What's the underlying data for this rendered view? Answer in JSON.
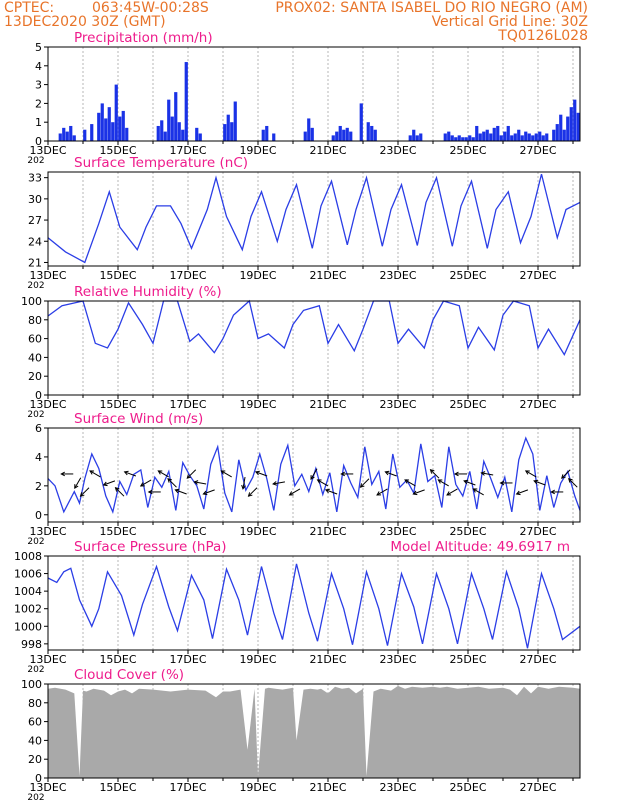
{
  "header": {
    "left_line1": "CPTEC:",
    "coords": "063:45W-00:28S",
    "station": "PROX02: SANTA ISABEL DO RIO NEGRO (AM)",
    "date": "13DEC2020 30Z (GMT)",
    "grid_line": "Vertical Grid Line: 30Z",
    "code": "TQ0126L028"
  },
  "colors": {
    "header": "#e8742a",
    "panel_title": "#ee1c8c",
    "line": "#2b3ee6",
    "bar": "#1a32e6",
    "cloud": "#a9a9a9",
    "grid": "#888888"
  },
  "x_axis": {
    "tick_labels": [
      "13DEC",
      "15DEC",
      "17DEC",
      "19DEC",
      "21DEC",
      "23DEC",
      "25DEC",
      "27DEC"
    ],
    "range_days": [
      0,
      15.2
    ],
    "year_label": "202"
  },
  "chart_data": [
    {
      "id": "precip",
      "type": "bar",
      "title": "Precipitation (mm/h)",
      "ylim": [
        0,
        5
      ],
      "yticks": [
        0,
        1,
        2,
        3,
        4,
        5
      ],
      "x": [
        0.35,
        0.45,
        0.55,
        0.65,
        0.75,
        1.05,
        1.25,
        1.45,
        1.55,
        1.65,
        1.75,
        1.85,
        1.95,
        2.05,
        2.15,
        2.25,
        3.15,
        3.25,
        3.35,
        3.45,
        3.55,
        3.65,
        3.75,
        3.85,
        3.95,
        4.25,
        4.35,
        5.05,
        5.15,
        5.25,
        5.35,
        6.15,
        6.25,
        6.45,
        7.35,
        7.45,
        7.55,
        8.15,
        8.25,
        8.35,
        8.45,
        8.55,
        8.65,
        8.95,
        9.15,
        9.25,
        9.35,
        10.35,
        10.45,
        10.55,
        10.65,
        11.35,
        11.45,
        11.55,
        11.65,
        11.75,
        11.85,
        11.95,
        12.05,
        12.15,
        12.25,
        12.35,
        12.45,
        12.55,
        12.65,
        12.75,
        12.85,
        12.95,
        13.05,
        13.15,
        13.25,
        13.35,
        13.45,
        13.55,
        13.65,
        13.75,
        13.85,
        13.95,
        14.05,
        14.15,
        14.25,
        14.45,
        14.55,
        14.65,
        14.75,
        14.85,
        14.95,
        15.05,
        15.15
      ],
      "values": [
        0.4,
        0.7,
        0.5,
        0.8,
        0.3,
        0.6,
        0.9,
        1.5,
        2.0,
        1.2,
        1.8,
        1.0,
        3.0,
        1.3,
        1.6,
        0.7,
        0.8,
        1.1,
        0.5,
        2.2,
        1.3,
        2.6,
        1.0,
        0.6,
        4.2,
        0.7,
        0.4,
        0.9,
        1.4,
        1.0,
        2.1,
        0.6,
        0.8,
        0.4,
        0.5,
        1.2,
        0.7,
        0.3,
        0.5,
        0.8,
        0.6,
        0.7,
        0.5,
        2.0,
        1.0,
        0.8,
        0.6,
        0.3,
        0.6,
        0.3,
        0.4,
        0.4,
        0.5,
        0.3,
        0.2,
        0.3,
        0.2,
        0.2,
        0.3,
        0.2,
        0.8,
        0.4,
        0.5,
        0.6,
        0.4,
        0.7,
        0.8,
        0.3,
        0.5,
        0.8,
        0.3,
        0.4,
        0.6,
        0.3,
        0.5,
        0.4,
        0.3,
        0.4,
        0.5,
        0.3,
        0.4,
        0.6,
        0.9,
        1.4,
        0.6,
        1.3,
        1.8,
        2.2,
        1.5
      ]
    },
    {
      "id": "temp",
      "type": "line",
      "title": "Surface Temperature (nC)",
      "ylim": [
        20.5,
        33.8
      ],
      "yticks": [
        21,
        24,
        27,
        30,
        33
      ],
      "x": [
        0.0,
        0.5,
        1.05,
        1.45,
        1.75,
        2.05,
        2.55,
        2.8,
        3.1,
        3.5,
        3.8,
        4.1,
        4.55,
        4.8,
        5.1,
        5.55,
        5.8,
        6.1,
        6.55,
        6.8,
        7.1,
        7.55,
        7.8,
        8.1,
        8.55,
        8.8,
        9.1,
        9.55,
        9.8,
        10.1,
        10.55,
        10.8,
        11.1,
        11.55,
        11.8,
        12.1,
        12.55,
        12.8,
        13.15,
        13.5,
        13.8,
        14.1,
        14.55,
        14.8,
        15.2
      ],
      "values": [
        24.5,
        22.5,
        21.0,
        26.5,
        31.0,
        26.0,
        22.8,
        26.0,
        29.0,
        29.0,
        26.5,
        23.0,
        28.5,
        33.0,
        27.5,
        22.8,
        27.5,
        31.0,
        24.0,
        28.5,
        32.0,
        23.0,
        29.0,
        32.5,
        23.5,
        28.5,
        33.0,
        23.3,
        28.5,
        32.0,
        23.4,
        29.5,
        33.0,
        23.3,
        29.0,
        32.5,
        23.0,
        28.5,
        31.0,
        23.8,
        27.5,
        33.5,
        24.5,
        28.5,
        29.5
      ]
    },
    {
      "id": "rh",
      "type": "line",
      "title": "Relative Humidity (%)",
      "ylim": [
        0,
        100
      ],
      "yticks": [
        0,
        20,
        40,
        60,
        80,
        100
      ],
      "x": [
        0.0,
        0.4,
        1.0,
        1.35,
        1.7,
        2.0,
        2.3,
        2.7,
        3.0,
        3.3,
        3.7,
        4.05,
        4.3,
        4.75,
        5.0,
        5.3,
        5.75,
        6.0,
        6.3,
        6.75,
        7.0,
        7.3,
        7.75,
        8.0,
        8.3,
        8.75,
        9.0,
        9.3,
        9.75,
        10.0,
        10.3,
        10.75,
        11.0,
        11.3,
        11.75,
        12.0,
        12.3,
        12.75,
        13.0,
        13.3,
        13.75,
        14.0,
        14.3,
        14.75,
        15.2
      ],
      "values": [
        84.0,
        95.0,
        100.0,
        55.0,
        50.0,
        70.0,
        98.0,
        75.0,
        55.0,
        100.0,
        100.0,
        57.0,
        65.0,
        45.0,
        60.0,
        85.0,
        100.0,
        60.0,
        65.0,
        50.0,
        75.0,
        90.0,
        95.0,
        55.0,
        75.0,
        47.0,
        70.0,
        100.0,
        100.0,
        55.0,
        70.0,
        50.0,
        80.0,
        100.0,
        95.0,
        50.0,
        72.0,
        48.0,
        85.0,
        100.0,
        95.0,
        50.0,
        70.0,
        43.0,
        80.0
      ]
    },
    {
      "id": "wind",
      "type": "line",
      "title": "Surface Wind (m/s)",
      "ylim": [
        -0.5,
        6
      ],
      "yticks": [
        0,
        2,
        4,
        6
      ],
      "x": [
        0.0,
        0.2,
        0.45,
        0.75,
        0.9,
        1.05,
        1.25,
        1.45,
        1.65,
        1.85,
        2.05,
        2.25,
        2.45,
        2.65,
        2.85,
        3.05,
        3.25,
        3.45,
        3.65,
        3.85,
        4.05,
        4.25,
        4.45,
        4.65,
        4.85,
        5.05,
        5.25,
        5.45,
        5.65,
        5.85,
        6.05,
        6.25,
        6.45,
        6.65,
        6.85,
        7.05,
        7.25,
        7.45,
        7.65,
        7.85,
        8.05,
        8.25,
        8.45,
        8.65,
        8.85,
        9.05,
        9.25,
        9.45,
        9.65,
        9.85,
        10.05,
        10.25,
        10.45,
        10.65,
        10.85,
        11.05,
        11.25,
        11.45,
        11.65,
        11.85,
        12.05,
        12.25,
        12.45,
        12.65,
        12.85,
        13.05,
        13.25,
        13.45,
        13.65,
        13.85,
        14.05,
        14.25,
        14.45,
        14.65,
        14.85,
        15.05,
        15.2
      ],
      "values": [
        2.5,
        2.0,
        0.2,
        1.6,
        0.8,
        2.5,
        4.2,
        3.2,
        1.3,
        0.2,
        2.3,
        1.4,
        2.8,
        3.1,
        0.5,
        2.6,
        1.9,
        3.0,
        0.3,
        3.6,
        2.7,
        2.0,
        0.4,
        3.5,
        4.7,
        1.5,
        0.2,
        3.8,
        1.7,
        2.6,
        4.2,
        2.5,
        0.3,
        3.5,
        4.8,
        2.0,
        2.8,
        1.6,
        3.2,
        1.4,
        2.9,
        0.2,
        3.4,
        2.2,
        1.2,
        4.7,
        2.1,
        3.0,
        0.4,
        4.2,
        1.9,
        2.4,
        1.5,
        4.9,
        2.3,
        2.7,
        0.5,
        4.7,
        2.1,
        1.3,
        3.0,
        0.4,
        3.7,
        2.5,
        1.2,
        2.6,
        0.2,
        3.8,
        5.3,
        4.2,
        0.3,
        2.7,
        0.5,
        2.2,
        3.0,
        1.3,
        0.3
      ],
      "arrows_at": [
        0.55,
        0.85,
        1.05,
        1.35,
        1.75,
        2.05,
        2.35,
        2.8,
        3.05,
        3.3,
        3.55,
        3.8,
        4.1,
        4.35,
        4.6,
        5.1,
        5.6,
        5.85,
        6.1,
        6.6,
        7.05,
        7.6,
        7.85,
        8.1,
        8.55,
        9.05,
        9.55,
        9.8,
        10.35,
        10.6,
        11.05,
        11.3,
        11.55,
        11.8,
        12.05,
        12.3,
        12.55,
        13.1,
        13.55,
        13.8,
        14.05,
        14.55,
        14.8,
        15.0
      ],
      "arrow_dir_deg": [
        180,
        120,
        135,
        210,
        160,
        225,
        200,
        150,
        180,
        210,
        225,
        200,
        135,
        190,
        160,
        210,
        100,
        135,
        200,
        170,
        150,
        120,
        210,
        200,
        180,
        135,
        150,
        200,
        210,
        160,
        225,
        210,
        150,
        180,
        200,
        210,
        190,
        180,
        160,
        210,
        200,
        180,
        135,
        225
      ]
    },
    {
      "id": "pres",
      "type": "line",
      "title": "Surface Pressure (hPa)",
      "extra_label": "Model Altitude: 49.6917 m",
      "ylim": [
        997.3,
        1008
      ],
      "yticks": [
        998,
        1000,
        1002,
        1004,
        1006,
        1008
      ],
      "x": [
        0.0,
        0.25,
        0.45,
        0.65,
        0.9,
        1.25,
        1.45,
        1.7,
        2.1,
        2.45,
        2.7,
        3.1,
        3.45,
        3.7,
        4.1,
        4.45,
        4.7,
        5.1,
        5.45,
        5.7,
        6.1,
        6.45,
        6.7,
        7.1,
        7.45,
        7.7,
        8.1,
        8.45,
        8.7,
        9.1,
        9.45,
        9.7,
        10.1,
        10.45,
        10.7,
        11.1,
        11.45,
        11.7,
        12.1,
        12.45,
        12.7,
        13.1,
        13.45,
        13.7,
        14.1,
        14.45,
        14.7,
        15.2
      ],
      "values": [
        1005.5,
        1005.0,
        1006.2,
        1006.6,
        1003.0,
        1000.0,
        1002.0,
        1006.2,
        1003.5,
        999.0,
        1002.5,
        1006.8,
        1002.2,
        999.5,
        1005.8,
        1003.0,
        998.6,
        1006.5,
        1003.0,
        999.0,
        1006.8,
        1001.5,
        998.5,
        1007.1,
        1001.5,
        998.3,
        1006.0,
        1002.0,
        997.9,
        1006.2,
        1002.0,
        997.8,
        1006.0,
        1002.2,
        998.0,
        1006.0,
        1002.0,
        998.0,
        1006.0,
        1002.0,
        998.5,
        1006.2,
        1002.0,
        997.5,
        1006.0,
        1002.0,
        998.5,
        1000.0
      ]
    },
    {
      "id": "cloud",
      "type": "area",
      "title": "Cloud Cover (%)",
      "ylim": [
        0,
        100
      ],
      "yticks": [
        0,
        20,
        40,
        60,
        80,
        100
      ],
      "x": [
        0.0,
        0.2,
        0.5,
        0.75,
        0.9,
        1.0,
        1.1,
        1.3,
        1.6,
        1.8,
        2.0,
        2.2,
        2.4,
        2.6,
        3.0,
        3.5,
        4.0,
        4.5,
        4.8,
        5.0,
        5.2,
        5.5,
        5.7,
        5.9,
        6.0,
        6.2,
        6.3,
        6.5,
        6.7,
        7.0,
        7.1,
        7.3,
        7.5,
        7.7,
        7.8,
        8.0,
        8.2,
        8.4,
        8.6,
        8.8,
        9.0,
        9.1,
        9.3,
        9.5,
        9.8,
        10.0,
        10.2,
        10.4,
        10.7,
        11.0,
        11.2,
        11.4,
        11.7,
        12.0,
        12.3,
        12.6,
        13.0,
        13.2,
        13.4,
        13.6,
        13.8,
        14.0,
        14.3,
        14.6,
        15.0,
        15.2
      ],
      "values": [
        95.0,
        96.0,
        94.0,
        90.0,
        2.0,
        93.0,
        92.0,
        95.0,
        93.0,
        88.0,
        92.0,
        94.0,
        90.0,
        95.0,
        94.0,
        92.0,
        94.0,
        93.0,
        86.0,
        92.0,
        92.0,
        94.0,
        30.0,
        95.0,
        2.0,
        95.0,
        96.0,
        95.0,
        94.0,
        96.0,
        40.0,
        94.0,
        95.0,
        94.0,
        95.0,
        90.0,
        97.0,
        95.0,
        96.0,
        90.0,
        95.0,
        2.0,
        92.0,
        95.0,
        93.0,
        98.0,
        95.0,
        97.0,
        96.0,
        97.0,
        96.0,
        97.0,
        95.0,
        96.0,
        97.0,
        95.0,
        96.0,
        94.0,
        88.0,
        97.0,
        90.0,
        97.0,
        95.0,
        97.0,
        96.0,
        95.0
      ]
    }
  ]
}
